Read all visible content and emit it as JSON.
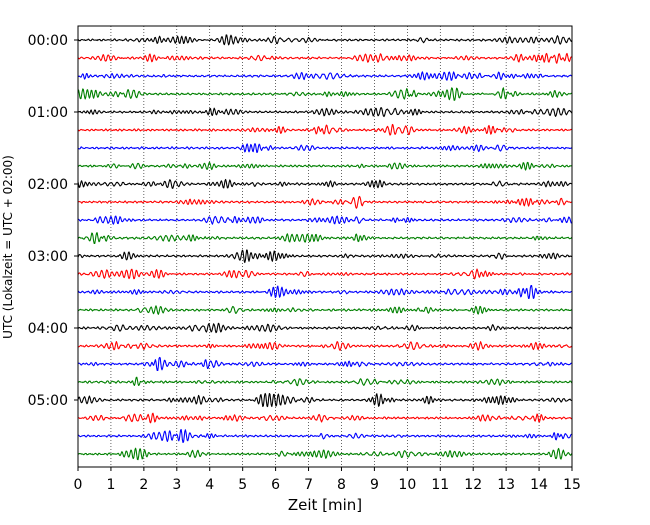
{
  "chart_data": {
    "type": "line",
    "title": "",
    "xlabel": "Zeit  [min]",
    "ylabel": "UTC (Lokalzeit = UTC + 02:00)",
    "xlim": [
      0,
      15
    ],
    "x_ticks": [
      "0",
      "1",
      "2",
      "3",
      "4",
      "5",
      "6",
      "7",
      "8",
      "9",
      "10",
      "11",
      "12",
      "13",
      "14",
      "15"
    ],
    "y_ticks": [
      "00:00",
      "01:00",
      "02:00",
      "03:00",
      "04:00",
      "05:00"
    ],
    "minutes_per_trace": 15,
    "trace_count": 24,
    "trace_colors": [
      "#000000",
      "#ff0000",
      "#0000ff",
      "#008000"
    ],
    "vertical_grid": "dotted",
    "legend": "none"
  }
}
